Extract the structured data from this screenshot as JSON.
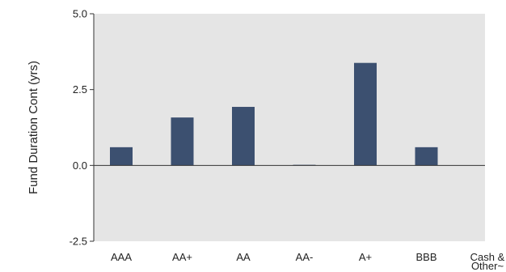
{
  "chart_data": {
    "type": "bar",
    "title": "",
    "xlabel": "",
    "ylabel": "Fund Duration Cont (yrs)",
    "categories": [
      "AAA",
      "AA+",
      "AA",
      "AA-",
      "A+",
      "BBB",
      "Cash & Other~"
    ],
    "values": [
      0.6,
      1.58,
      1.93,
      0.02,
      3.38,
      0.6,
      0.0
    ],
    "ylim": [
      -2.5,
      5.0
    ],
    "yticks": [
      "5.0",
      "2.5",
      "0.0",
      "-2.5"
    ],
    "grid": false,
    "legend": "none",
    "colors": {
      "bar": "#3c5070",
      "plot_bg": "#e5e5e5",
      "axis": "#333333"
    }
  }
}
